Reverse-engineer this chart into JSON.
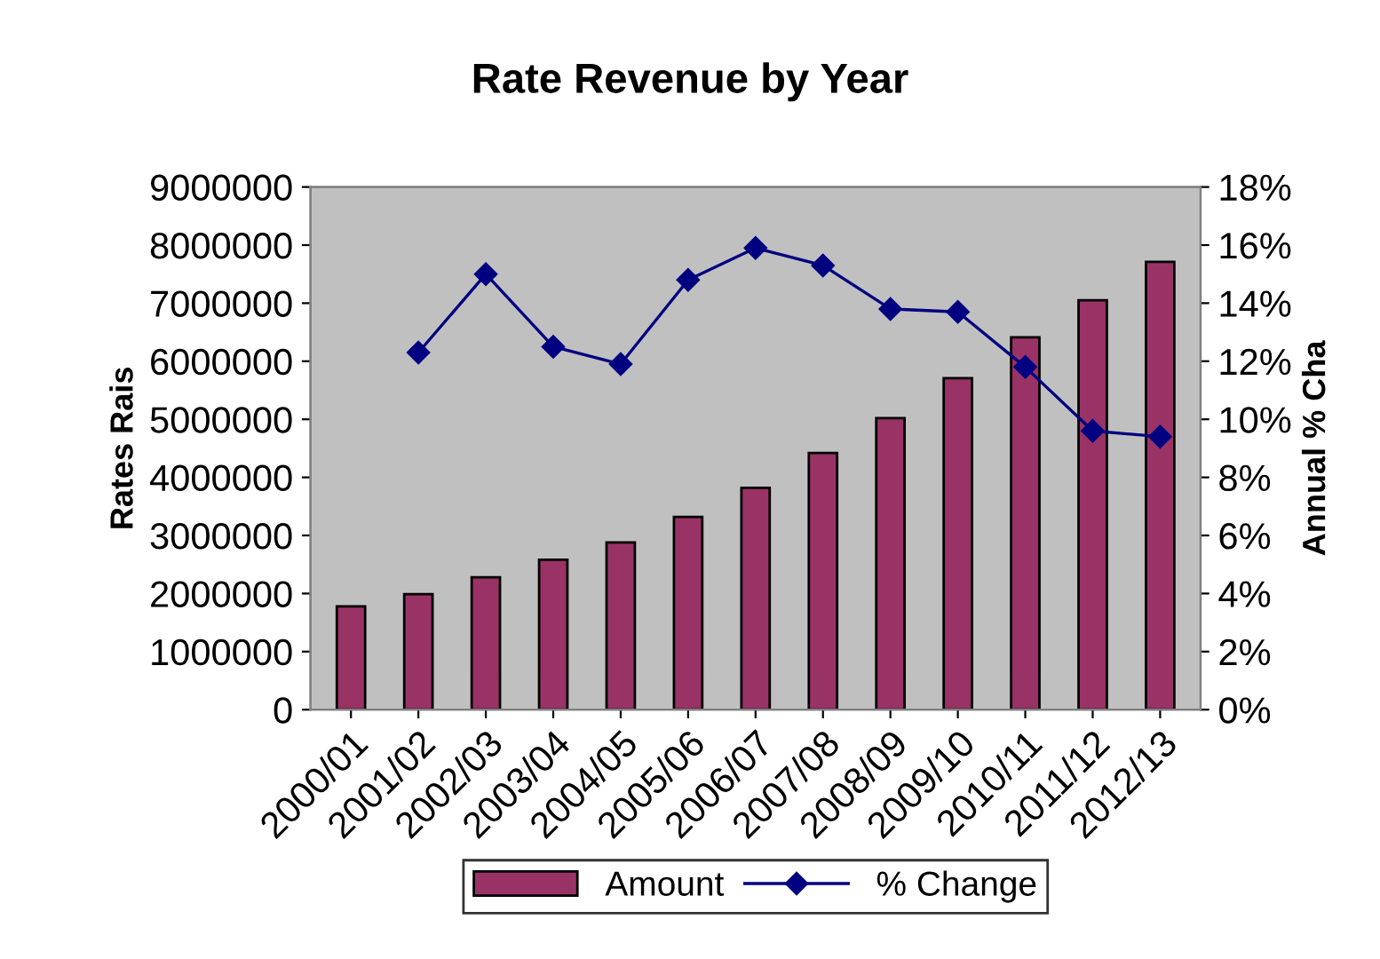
{
  "chart_data": {
    "type": "bar",
    "title": "Rate Revenue by Year",
    "ylabel": "Rates Rais",
    "y2label": "Annual % Cha",
    "categories": [
      "2000/01",
      "2001/02",
      "2002/03",
      "2003/04",
      "2004/05",
      "2005/06",
      "2006/07",
      "2007/08",
      "2008/09",
      "2009/10",
      "2010/11",
      "2011/12",
      "2012/13"
    ],
    "series": [
      {
        "name": "Amount",
        "color": "#993366",
        "values": [
          1780000,
          1990000,
          2280000,
          2580000,
          2880000,
          3320000,
          3820000,
          4420000,
          5020000,
          5710000,
          6410000,
          7050000,
          7710000
        ]
      },
      {
        "name": "% Change",
        "type": "line",
        "axis": "y2",
        "color": "#000080",
        "marker": "diamond",
        "values": [
          null,
          12.3,
          15.0,
          12.5,
          11.9,
          14.8,
          15.9,
          15.3,
          13.8,
          13.7,
          11.8,
          9.6,
          9.4
        ]
      }
    ],
    "ylim": [
      0,
      9000000
    ],
    "yticks": [
      0,
      1000000,
      2000000,
      3000000,
      4000000,
      5000000,
      6000000,
      7000000,
      8000000,
      9000000
    ],
    "y2lim": [
      0,
      18
    ],
    "y2ticks": [
      {
        "value": 0,
        "label": "0%"
      },
      {
        "value": 2,
        "label": "2%"
      },
      {
        "value": 4,
        "label": "4%"
      },
      {
        "value": 6,
        "label": "6%"
      },
      {
        "value": 8,
        "label": "8%"
      },
      {
        "value": 10,
        "label": "10%"
      },
      {
        "value": 12,
        "label": "12%"
      },
      {
        "value": 14,
        "label": "14%"
      },
      {
        "value": 16,
        "label": "16%"
      },
      {
        "value": 18,
        "label": "18%"
      }
    ],
    "grid": false,
    "legend": "bottom"
  }
}
